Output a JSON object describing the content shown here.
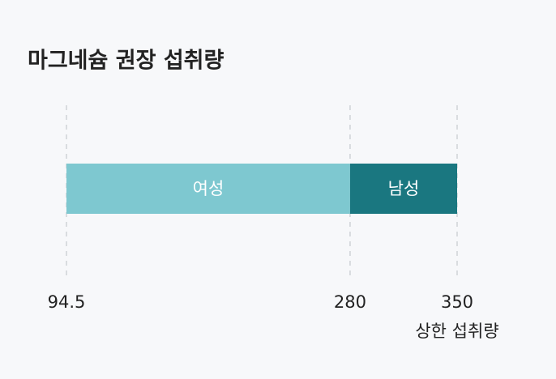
{
  "chart_data": {
    "type": "range-bar",
    "title": "마그네슘 권장 섭취량",
    "series": [
      {
        "name": "여성",
        "color": "#7ec8d0",
        "values": [
          280
        ]
      },
      {
        "name": "남성",
        "color": "#1a7780",
        "values": [
          350
        ]
      }
    ],
    "xlim": [
      94.5,
      350
    ],
    "xticks": [
      94.5,
      280,
      350
    ],
    "grid": true,
    "annotation": "상한 섭취량"
  }
}
